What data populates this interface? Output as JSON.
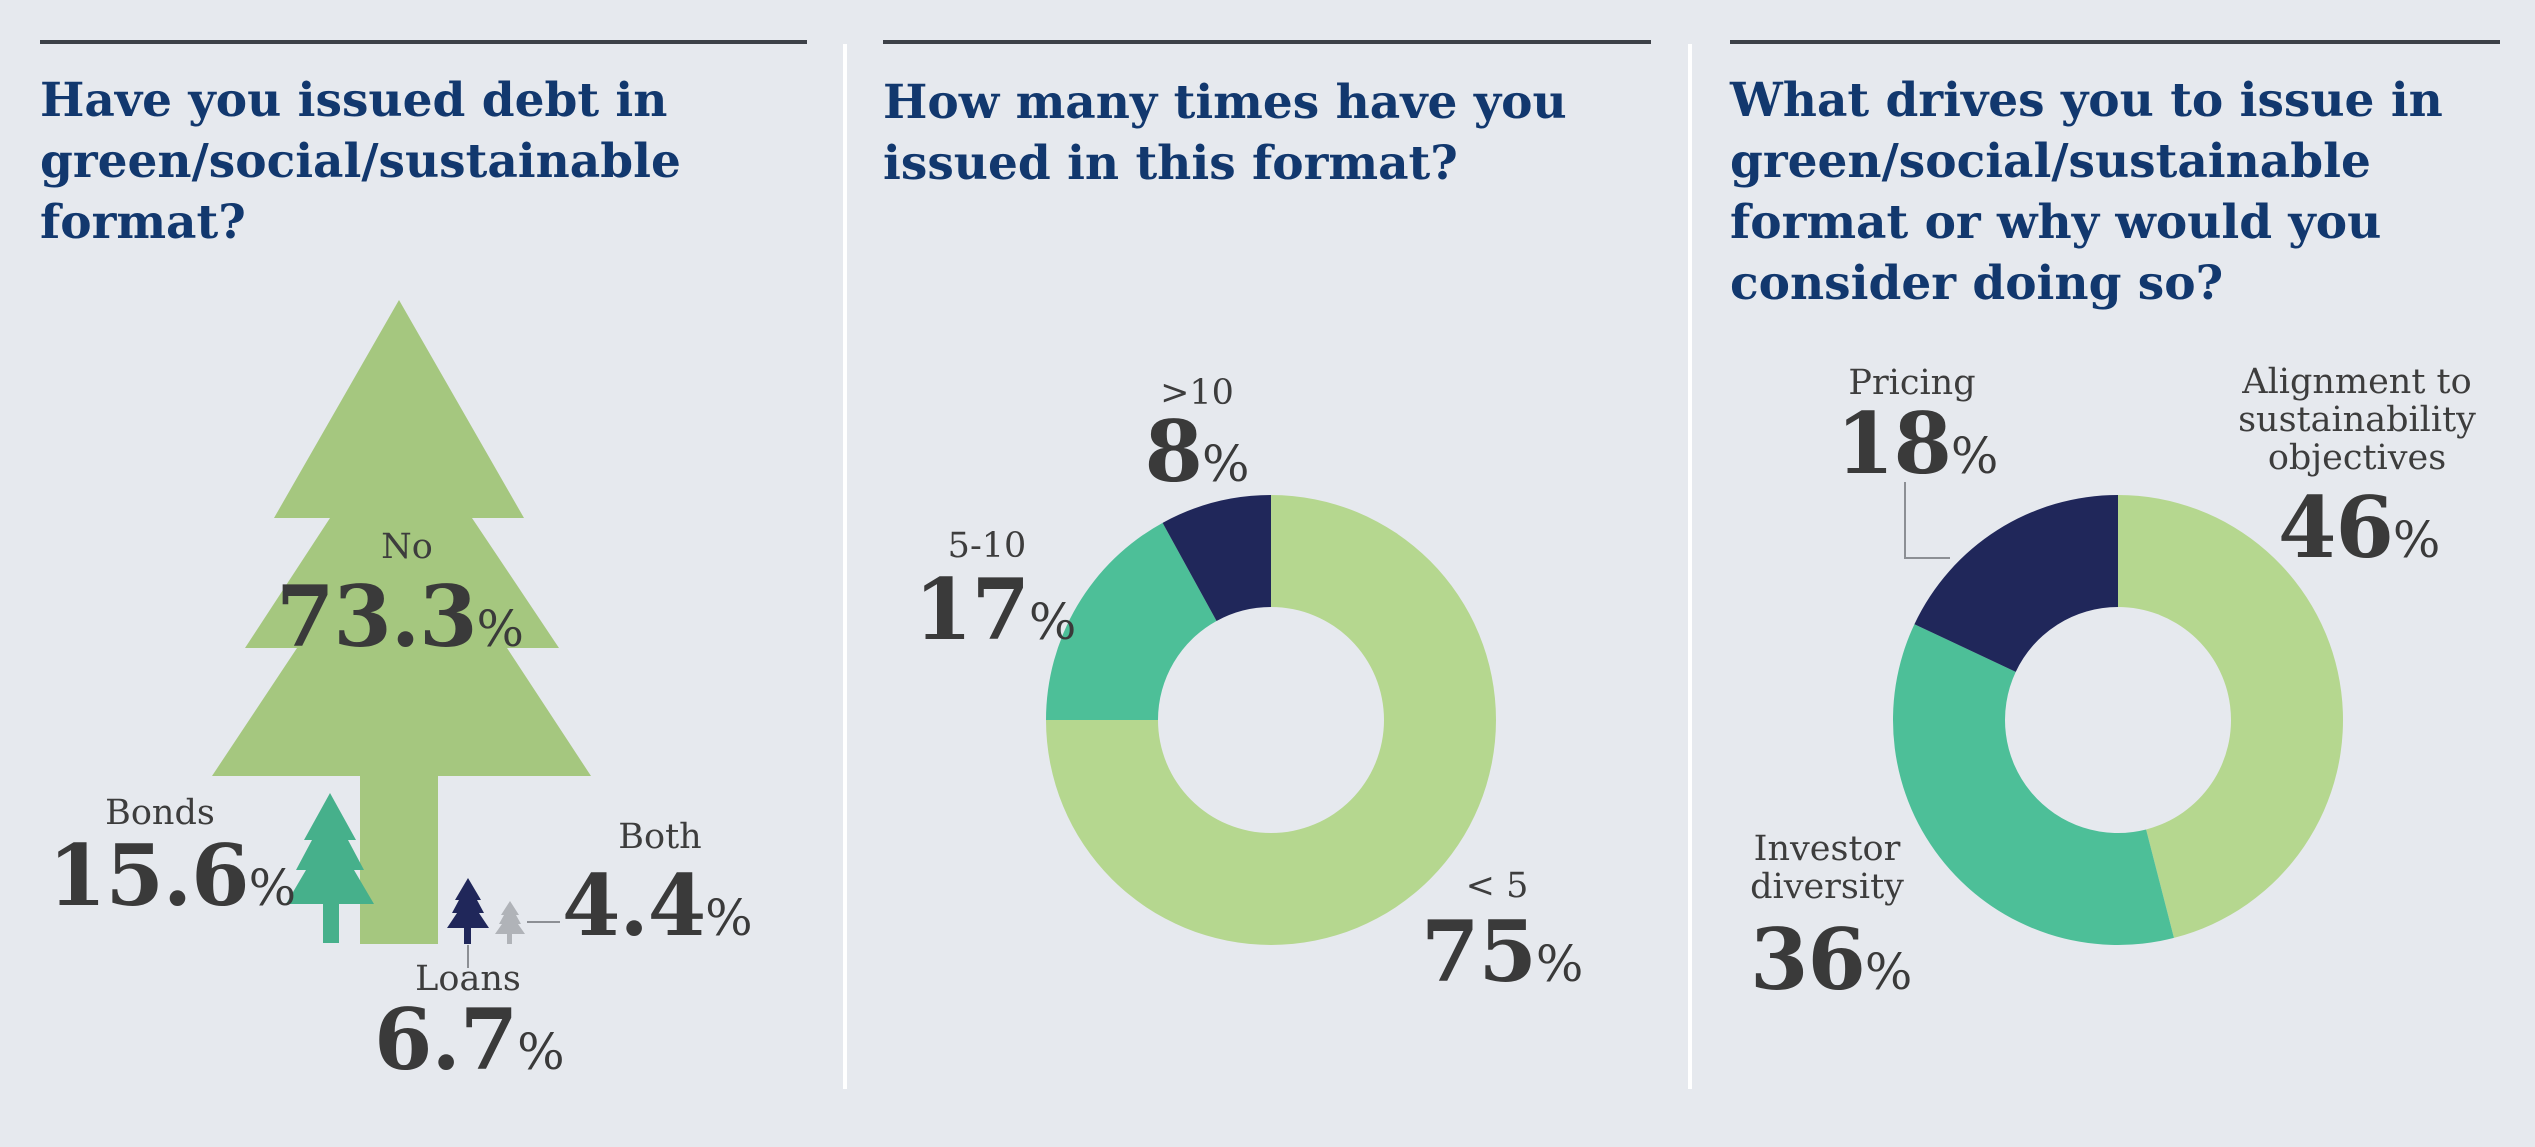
{
  "colors": {
    "background": "#e6e9ee",
    "title": "#12386e",
    "light_green": "#b5d78f",
    "tree_green": "#a5c77f",
    "teal": "#4dbf98",
    "bonds_teal": "#46b08b",
    "navy": "#20275a",
    "grey": "#b0b3b8"
  },
  "panels": [
    {
      "title": "Have you issued debt in green/social/sustainable format?",
      "items": [
        {
          "label": "No",
          "value": "73.3",
          "unit": "%",
          "icon": "large-tree-icon"
        },
        {
          "label": "Bonds",
          "value": "15.6",
          "unit": "%",
          "icon": "teal-tree-icon"
        },
        {
          "label": "Loans",
          "value": "6.7",
          "unit": "%",
          "icon": "navy-tree-icon"
        },
        {
          "label": "Both",
          "value": "4.4",
          "unit": "%",
          "icon": "grey-tree-icon"
        }
      ]
    },
    {
      "title": "How many times have you issued in this format?",
      "labels": [
        {
          "label": ">10",
          "value": "8",
          "unit": "%"
        },
        {
          "label": "5-10",
          "value": "17",
          "unit": "%"
        },
        {
          "label": "< 5",
          "value": "75",
          "unit": "%"
        }
      ]
    },
    {
      "title": "What drives you to issue in green/social/sustainable format or why would you consider doing so?",
      "labels": [
        {
          "label": "Pricing",
          "value": "18",
          "unit": "%"
        },
        {
          "label": "Alignment to sustainability objectives",
          "value": "46",
          "unit": "%"
        },
        {
          "label": "Investor diversity",
          "value": "36",
          "unit": "%"
        }
      ]
    }
  ],
  "chart_data": [
    {
      "type": "pictogram",
      "categories": [
        "No",
        "Bonds",
        "Loans",
        "Both"
      ],
      "values": [
        73.3,
        15.6,
        6.7,
        4.4
      ]
    },
    {
      "type": "pie",
      "categories": [
        "< 5",
        "5-10",
        ">10"
      ],
      "values": [
        75,
        17,
        8
      ],
      "colors": [
        "#b5d78f",
        "#4dbf98",
        "#20275a"
      ]
    },
    {
      "type": "pie",
      "categories": [
        "Alignment to sustainability objectives",
        "Investor diversity",
        "Pricing"
      ],
      "values": [
        46,
        36,
        18
      ],
      "colors": [
        "#b5d78f",
        "#4dbf98",
        "#20275a"
      ]
    }
  ]
}
